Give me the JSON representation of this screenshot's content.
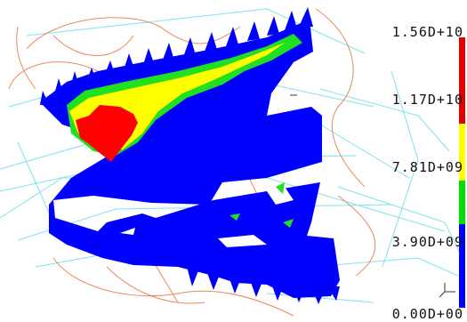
{
  "legend": {
    "labels": [
      "1.56D+10",
      "1.17D+10",
      "7.81D+09",
      "3.90D+09",
      "0.00D+00"
    ],
    "colors": [
      "#e00000",
      "#ffff00",
      "#00e000",
      "#0000ff"
    ],
    "band_fractions": [
      0.32,
      0.21,
      0.16,
      0.31
    ]
  },
  "palette": {
    "background": "#ffffff",
    "wire_cyan": "#7fe3ee",
    "wire_orange": "#e8895a",
    "body_blue": "#0000ff",
    "contour_green": "#20e020",
    "contour_yellow": "#ffff00",
    "contour_red": "#ff0000"
  },
  "icons": [
    "triad-icon"
  ]
}
